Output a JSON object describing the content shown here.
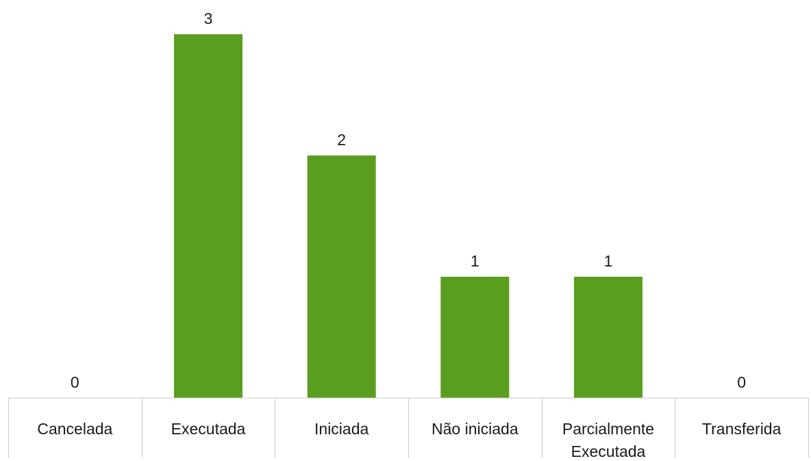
{
  "chart_data": {
    "type": "bar",
    "categories": [
      [
        "Cancelada"
      ],
      [
        "Executada"
      ],
      [
        "Iniciada"
      ],
      [
        "Não iniciada"
      ],
      [
        "Parcialmente",
        "Executada"
      ],
      [
        "Transferida"
      ]
    ],
    "values": [
      0,
      3,
      2,
      1,
      1,
      0
    ],
    "data_labels": [
      "0",
      "3",
      "2",
      "1",
      "1",
      "0"
    ],
    "title": "",
    "xlabel": "",
    "ylabel": "",
    "ylim": [
      0,
      3
    ],
    "grid": false,
    "legend": "none",
    "colors": {
      "bar": "#5a9e1f",
      "axis": "#c8c8c8",
      "text": "#1a1a1a"
    }
  }
}
